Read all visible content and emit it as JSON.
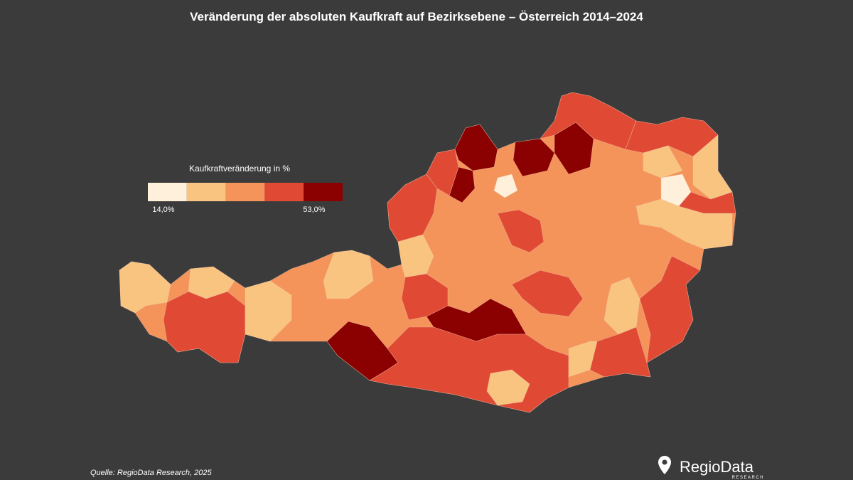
{
  "title": "Veränderung der absoluten Kaufkraft auf Bezirksebene – Österreich 2014–2024",
  "legend": {
    "title": "Kaufkraftveränderung in %",
    "min_label": "14,0%",
    "max_label": "53,0%",
    "colors": [
      "#fff0dc",
      "#f9c47f",
      "#f4935a",
      "#e04a35",
      "#8b0000"
    ]
  },
  "source": "Quelle: RegioData Research, 2025",
  "logo": {
    "name": "RegioData",
    "sub": "RESEARCH"
  }
}
